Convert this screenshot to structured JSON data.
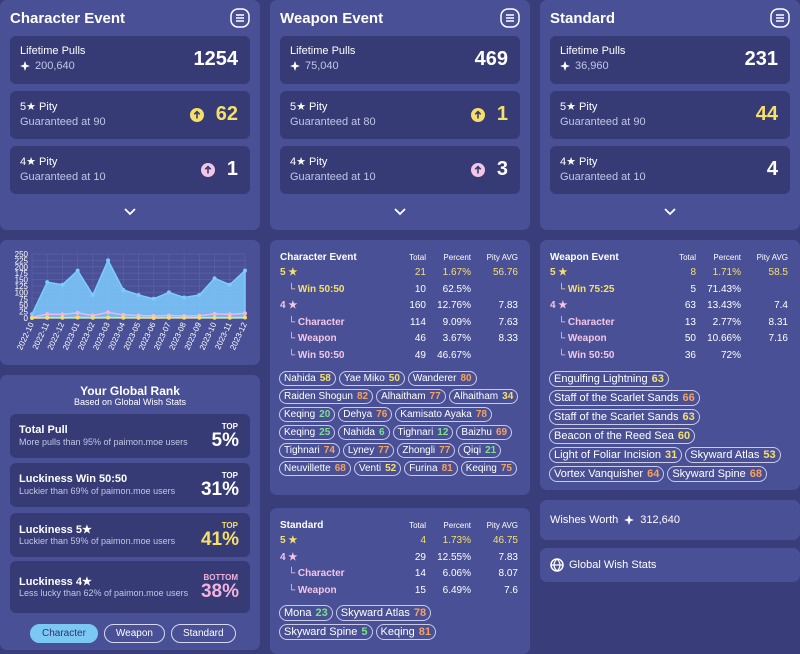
{
  "top_cards": [
    {
      "title": "Character Event",
      "lifetime": {
        "label": "Lifetime Pulls",
        "primos": "200,640",
        "value": 1254
      },
      "pity5": {
        "label": "5★ Pity",
        "sub": "Guaranteed at 90",
        "value": 62,
        "guaranteed_icon": true
      },
      "pity4": {
        "label": "4★ Pity",
        "sub": "Guaranteed at 10",
        "value": 1,
        "guaranteed_icon": true
      }
    },
    {
      "title": "Weapon Event",
      "lifetime": {
        "label": "Lifetime Pulls",
        "primos": "75,040",
        "value": 469
      },
      "pity5": {
        "label": "5★ Pity",
        "sub": "Guaranteed at 80",
        "value": 1,
        "guaranteed_icon": true
      },
      "pity4": {
        "label": "4★ Pity",
        "sub": "Guaranteed at 10",
        "value": 3,
        "guaranteed_icon": true
      }
    },
    {
      "title": "Standard",
      "lifetime": {
        "label": "Lifetime Pulls",
        "primos": "36,960",
        "value": 231
      },
      "pity5": {
        "label": "5★ Pity",
        "sub": "Guaranteed at 90",
        "value": 44,
        "guaranteed_icon": false
      },
      "pity4": {
        "label": "4★ Pity",
        "sub": "Guaranteed at 10",
        "value": 4,
        "guaranteed_icon": false
      }
    }
  ],
  "pull_chart": {
    "type": "area",
    "x": [
      "2022-10",
      "2022-11",
      "2022-12",
      "2023-01",
      "2023-02",
      "2023-03",
      "2023-04",
      "2023-05",
      "2023-06",
      "2023-07",
      "2023-08",
      "2023-09",
      "2023-10",
      "2023-11",
      "2023-12"
    ],
    "series": [
      {
        "color": "#7ecbff",
        "values": [
          15,
          140,
          130,
          185,
          90,
          225,
          110,
          90,
          75,
          100,
          80,
          90,
          155,
          130,
          185
        ]
      },
      {
        "color": "#f4b6de",
        "values": [
          2,
          15,
          14,
          20,
          10,
          22,
          12,
          10,
          8,
          10,
          8,
          9,
          16,
          14,
          18
        ]
      },
      {
        "color": "#f3df6c",
        "values": [
          0,
          1,
          1,
          2,
          1,
          2,
          1,
          1,
          0,
          1,
          1,
          1,
          1,
          1,
          2
        ]
      }
    ],
    "ylim": [
      0,
      250
    ],
    "yticks": [
      0,
      25,
      50,
      75,
      100,
      125,
      150,
      175,
      200,
      225,
      250
    ],
    "grid": true
  },
  "global_rank": {
    "title": "Your Global Rank",
    "subtitle": "Based on Global Wish Stats",
    "items": [
      {
        "title": "Total Pull",
        "desc": "More pulls than 95% of paimon.moe users",
        "rank": "TOP",
        "percent": "5%",
        "color": "#ffffff"
      },
      {
        "title": "Luckiness Win 50:50",
        "desc": "Luckier than 69% of paimon.moe users",
        "rank": "TOP",
        "percent": "31%",
        "color": "#ffffff"
      },
      {
        "title": "Luckiness 5★",
        "desc": "Luckier than 59% of paimon.moe users",
        "rank": "TOP",
        "percent": "41%",
        "color": "#f5e06a"
      },
      {
        "title": "Luckiness 4★",
        "desc": "Less lucky than 62% of paimon.moe users",
        "rank": "BOTTOM",
        "percent": "38%",
        "color": "#f3b2dc"
      }
    ],
    "tabs": [
      "Character",
      "Weapon",
      "Standard"
    ]
  },
  "tables": [
    {
      "columns": [
        "Character Event",
        "Total",
        "Percent",
        "Pity AVG"
      ],
      "rows": [
        {
          "cells": [
            "5 ★",
            21,
            "1.67%",
            56.76
          ],
          "color": "#f5e06a",
          "indent": false
        },
        {
          "cells": [
            "└ Win 50:50",
            10,
            "62.5%"
          ],
          "color": "#f5e06a",
          "indent": true
        },
        {
          "cells": [
            "4 ★",
            160,
            "12.76%",
            7.83
          ],
          "color": "#f3c6e6",
          "indent": false
        },
        {
          "cells": [
            "└ Character",
            114,
            "9.09%",
            7.63
          ],
          "color": "#f3c6e6",
          "indent": true
        },
        {
          "cells": [
            "└ Weapon",
            46,
            "3.67%",
            8.33
          ],
          "color": "#f3c6e6",
          "indent": true
        },
        {
          "cells": [
            "└ Win 50:50",
            49,
            "46.67%"
          ],
          "color": "#f3c6e6",
          "indent": true
        }
      ],
      "chips": [
        {
          "name": "Nahida",
          "pity": 58
        },
        {
          "name": "Yae Miko",
          "pity": 50
        },
        {
          "name": "Wanderer",
          "pity": 80
        },
        {
          "name": "Raiden Shogun",
          "pity": 82
        },
        {
          "name": "Alhaitham",
          "pity": 77
        },
        {
          "name": "Alhaitham",
          "pity": 34
        },
        {
          "name": "Keqing",
          "pity": 20
        },
        {
          "name": "Dehya",
          "pity": 76
        },
        {
          "name": "Kamisato Ayaka",
          "pity": 78
        },
        {
          "name": "Keqing",
          "pity": 25
        },
        {
          "name": "Nahida",
          "pity": 6
        },
        {
          "name": "Tighnari",
          "pity": 12
        },
        {
          "name": "Baizhu",
          "pity": 69
        },
        {
          "name": "Tighnari",
          "pity": 74
        },
        {
          "name": "Lyney",
          "pity": 77
        },
        {
          "name": "Zhongli",
          "pity": 77
        },
        {
          "name": "Qiqi",
          "pity": 21
        },
        {
          "name": "Neuvillette",
          "pity": 68
        },
        {
          "name": "Venti",
          "pity": 52
        },
        {
          "name": "Furina",
          "pity": 81
        },
        {
          "name": "Keqing",
          "pity": 75
        }
      ]
    },
    {
      "columns": [
        "Weapon Event",
        "Total",
        "Percent",
        "Pity AVG"
      ],
      "rows": [
        {
          "cells": [
            "5 ★",
            8,
            "1.71%",
            58.5
          ],
          "color": "#f5e06a",
          "indent": false
        },
        {
          "cells": [
            "└ Win 75:25",
            5,
            "71.43%"
          ],
          "color": "#f5e06a",
          "indent": true
        },
        {
          "cells": [
            "4 ★",
            63,
            "13.43%",
            7.4
          ],
          "color": "#f3c6e6",
          "indent": false
        },
        {
          "cells": [
            "└ Character",
            13,
            "2.77%",
            8.31
          ],
          "color": "#f3c6e6",
          "indent": true
        },
        {
          "cells": [
            "└ Weapon",
            50,
            "10.66%",
            7.16
          ],
          "color": "#f3c6e6",
          "indent": true
        },
        {
          "cells": [
            "└ Win 50:50",
            36,
            "72%"
          ],
          "color": "#f3c6e6",
          "indent": true
        }
      ],
      "chips": [
        {
          "name": "Engulfing Lightning",
          "pity": 63
        },
        {
          "name": "Staff of the Scarlet Sands",
          "pity": 66
        },
        {
          "name": "Staff of the Scarlet Sands",
          "pity": 63
        },
        {
          "name": "Beacon of the Reed Sea",
          "pity": 60
        },
        {
          "name": "Light of Foliar Incision",
          "pity": 31
        },
        {
          "name": "Skyward Atlas",
          "pity": 53
        },
        {
          "name": "Vortex Vanquisher",
          "pity": 64
        },
        {
          "name": "Skyward Spine",
          "pity": 68
        }
      ]
    },
    {
      "columns": [
        "Standard",
        "Total",
        "Percent",
        "Pity AVG"
      ],
      "rows": [
        {
          "cells": [
            "5 ★",
            4,
            "1.73%",
            46.75
          ],
          "color": "#f5e06a",
          "indent": false
        },
        {
          "cells": [
            "4 ★",
            29,
            "12.55%",
            7.83
          ],
          "color": "#f3c6e6",
          "indent": false
        },
        {
          "cells": [
            "└ Character",
            14,
            "6.06%",
            8.07
          ],
          "color": "#f3c6e6",
          "indent": true
        },
        {
          "cells": [
            "└ Weapon",
            15,
            "6.49%",
            7.6
          ],
          "color": "#f3c6e6",
          "indent": true
        }
      ],
      "chips": [
        {
          "name": "Mona",
          "pity": 23
        },
        {
          "name": "Skyward Atlas",
          "pity": 78
        },
        {
          "name": "Skyward Spine",
          "pity": 5
        },
        {
          "name": "Keqing",
          "pity": 81
        }
      ]
    }
  ],
  "wishes_worth": {
    "label": "Wishes Worth",
    "value": "312,640"
  },
  "global_wish_stats": "Global Wish Stats"
}
